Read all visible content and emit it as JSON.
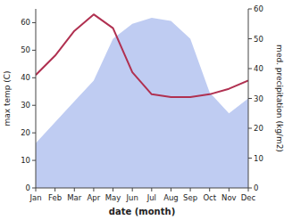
{
  "chart_data": {
    "type": "line",
    "categories": [
      "Jan",
      "Feb",
      "Mar",
      "Apr",
      "May",
      "Jun",
      "Jul",
      "Aug",
      "Sep",
      "Oct",
      "Nov",
      "Dec"
    ],
    "series": [
      {
        "name": "med. precipitation (kg/m2)",
        "type": "area",
        "axis": "y2",
        "color": "#aabbee",
        "values": [
          15,
          22,
          29,
          36,
          50,
          55,
          57,
          56,
          50,
          32,
          25,
          30
        ]
      },
      {
        "name": "max temp (C)",
        "type": "line",
        "axis": "y",
        "color": "#b03050",
        "values": [
          41,
          48,
          57,
          63,
          58,
          42,
          34,
          33,
          33,
          34,
          36,
          39
        ]
      }
    ],
    "x_label": "date (month)",
    "y_label": "max temp (C)",
    "y2_label": "med. precipitation (kg/m2)",
    "ylim": [
      0,
      65
    ],
    "yticks": [
      0,
      10,
      20,
      30,
      40,
      50,
      60
    ],
    "y2lim": [
      0,
      60
    ],
    "y2ticks": [
      0,
      10,
      20,
      30,
      40,
      50,
      60
    ],
    "grid": false
  }
}
